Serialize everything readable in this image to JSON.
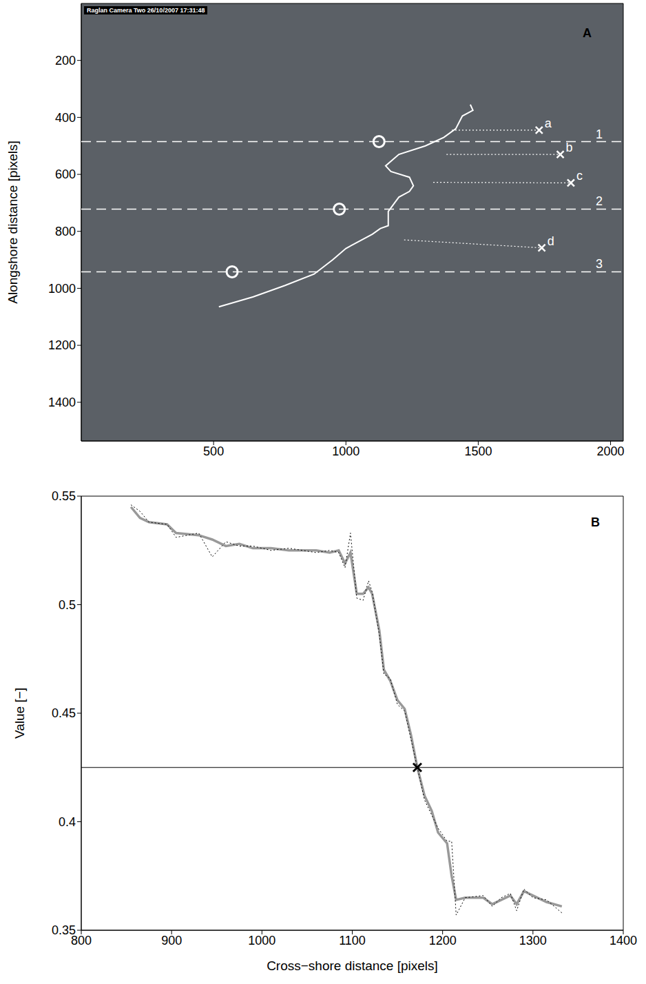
{
  "chart_data": [
    {
      "panel": "A",
      "type": "line",
      "overlay_text": "Raglan Camera Two 26/10/2007 17:31:48",
      "ylabel": "Alongshore distance [pixels]",
      "xlim": [
        0,
        2048
      ],
      "ylim": [
        1536,
        0
      ],
      "xticks": [
        500,
        1000,
        1500,
        2000
      ],
      "yticks": [
        200,
        400,
        600,
        800,
        1000,
        1200,
        1400
      ],
      "shoreline": {
        "color": "#ffffff",
        "line_style": "solid",
        "x": [
          1470,
          1480,
          1440,
          1415,
          1370,
          1300,
          1200,
          1150,
          1170,
          1240,
          1255,
          1240,
          1200,
          1160,
          1160,
          1130,
          1100,
          1000,
          950,
          880,
          770,
          650,
          520
        ],
        "y": [
          355,
          375,
          395,
          440,
          470,
          500,
          530,
          570,
          590,
          610,
          640,
          660,
          680,
          730,
          780,
          790,
          810,
          860,
          900,
          950,
          990,
          1030,
          1065
        ]
      },
      "transects": [
        {
          "label": "1",
          "y": 485,
          "circle_x": 1125
        },
        {
          "label": "2",
          "y": 722,
          "circle_x": 975
        },
        {
          "label": "3",
          "y": 942,
          "circle_x": 570
        }
      ],
      "points": [
        {
          "label": "a",
          "x": 1730,
          "y": 445,
          "line_from": [
            1400,
            445
          ]
        },
        {
          "label": "b",
          "x": 1810,
          "y": 530,
          "line_from": [
            1380,
            530
          ]
        },
        {
          "label": "c",
          "x": 1850,
          "y": 630,
          "line_from": [
            1330,
            628
          ]
        },
        {
          "label": "d",
          "x": 1740,
          "y": 858,
          "line_from": [
            1220,
            830
          ]
        }
      ],
      "color": "#ffffff",
      "marker": "x"
    },
    {
      "panel": "B",
      "type": "line",
      "xlabel": "Cross−shore distance [pixels]",
      "ylabel": "Value [−]",
      "xlim": [
        800,
        1400
      ],
      "ylim": [
        0.35,
        0.55
      ],
      "xticks": [
        800,
        900,
        1000,
        1100,
        1200,
        1300,
        1400
      ],
      "yticks": [
        0.35,
        0.4,
        0.45,
        0.5,
        0.55
      ],
      "x": [
        855,
        865,
        875,
        895,
        905,
        930,
        945,
        960,
        975,
        990,
        1010,
        1030,
        1060,
        1075,
        1085,
        1092,
        1098,
        1105,
        1112,
        1118,
        1122,
        1130,
        1135,
        1142,
        1150,
        1158,
        1165,
        1172,
        1180,
        1188,
        1195,
        1205,
        1210,
        1215,
        1225,
        1245,
        1255,
        1265,
        1275,
        1282,
        1290,
        1300,
        1315,
        1332
      ],
      "series": [
        {
          "color": "#999999",
          "line_style": "solid",
          "values": [
            0.545,
            0.54,
            0.538,
            0.537,
            0.533,
            0.532,
            0.53,
            0.527,
            0.528,
            0.526,
            0.526,
            0.525,
            0.525,
            0.524,
            0.525,
            0.519,
            0.524,
            0.505,
            0.505,
            0.508,
            0.505,
            0.488,
            0.47,
            0.465,
            0.456,
            0.452,
            0.44,
            0.425,
            0.412,
            0.405,
            0.395,
            0.39,
            0.375,
            0.364,
            0.365,
            0.365,
            0.362,
            0.364,
            0.366,
            0.362,
            0.368,
            0.366,
            0.363,
            0.361
          ]
        },
        {
          "color": "#000000",
          "line_style": "dotted",
          "values": [
            0.546,
            0.543,
            0.538,
            0.537,
            0.531,
            0.533,
            0.522,
            0.529,
            0.527,
            0.527,
            0.525,
            0.526,
            0.524,
            0.525,
            0.524,
            0.517,
            0.533,
            0.503,
            0.502,
            0.511,
            0.506,
            0.486,
            0.468,
            0.466,
            0.454,
            0.451,
            0.438,
            0.425,
            0.41,
            0.403,
            0.397,
            0.391,
            0.391,
            0.357,
            0.365,
            0.366,
            0.361,
            0.365,
            0.367,
            0.359,
            0.369,
            0.365,
            0.364,
            0.358
          ]
        }
      ],
      "threshold": 0.425,
      "crossing": {
        "x": 1172,
        "y": 0.425,
        "marker": "x"
      }
    }
  ]
}
